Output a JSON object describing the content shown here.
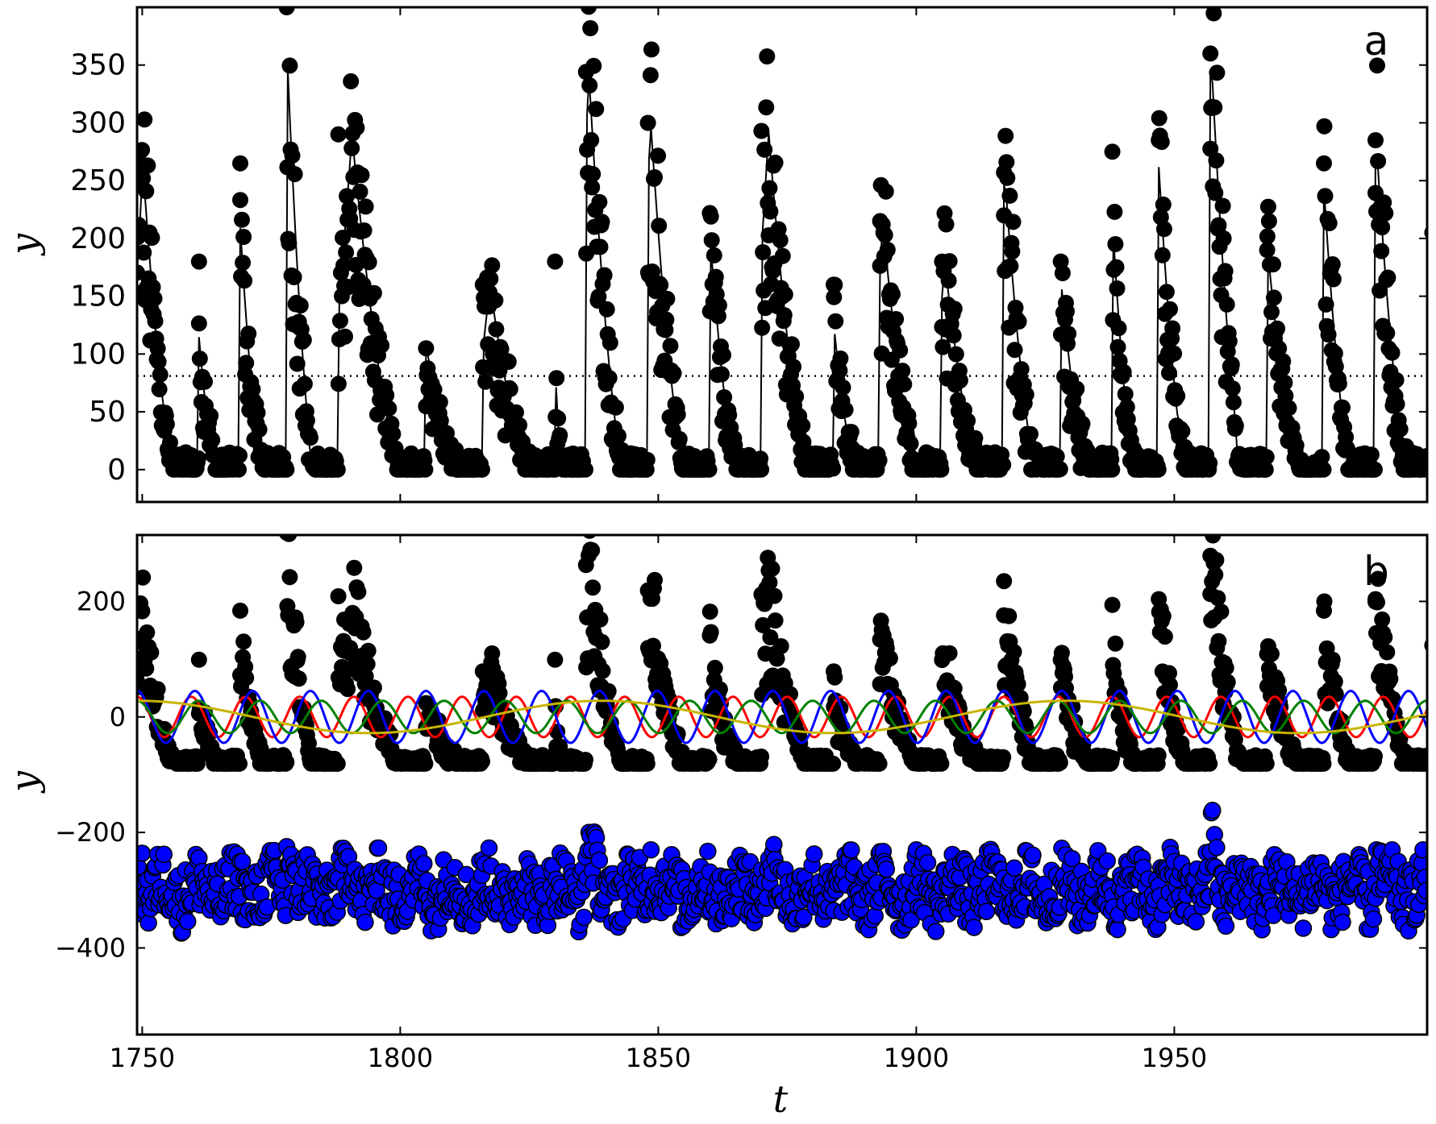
{
  "chart_data": [
    {
      "panel": "a",
      "type": "scatter",
      "xlabel": "",
      "ylabel": "y",
      "xlim": [
        1749,
        1999
      ],
      "ylim": [
        -28,
        400
      ],
      "yticks": [
        "0",
        "50",
        "100",
        "150",
        "200",
        "250",
        "300",
        "350"
      ],
      "ytick_values": [
        0,
        50,
        100,
        150,
        200,
        250,
        300,
        350
      ],
      "mean_level": 81,
      "series": [
        {
          "color": "#000000",
          "style": "markers",
          "cycles": [
            {
              "year": 1750,
              "y": 264
            },
            {
              "year": 1761,
              "y": 180
            },
            {
              "year": 1769,
              "y": 265
            },
            {
              "year": 1778,
              "y": 400
            },
            {
              "year": 1788,
              "y": 290
            },
            {
              "year": 1805,
              "y": 105
            },
            {
              "year": 1816,
              "y": 160
            },
            {
              "year": 1830,
              "y": 180
            },
            {
              "year": 1836,
              "y": 344
            },
            {
              "year": 1848,
              "y": 300
            },
            {
              "year": 1860,
              "y": 222
            },
            {
              "year": 1870,
              "y": 293
            },
            {
              "year": 1884,
              "y": 160
            },
            {
              "year": 1893,
              "y": 215
            },
            {
              "year": 1905,
              "y": 180
            },
            {
              "year": 1917,
              "y": 257
            },
            {
              "year": 1928,
              "y": 180
            },
            {
              "year": 1938,
              "y": 275
            },
            {
              "year": 1947,
              "y": 285
            },
            {
              "year": 1957,
              "y": 360
            },
            {
              "year": 1968,
              "y": 190
            },
            {
              "year": 1979,
              "y": 265
            },
            {
              "year": 1989,
              "y": 285
            },
            {
              "year": 2000,
              "y": 205
            }
          ]
        },
        {
          "color": "#000000",
          "style": "solid-line"
        },
        {
          "color": "#000000",
          "style": "dotted-line"
        }
      ]
    },
    {
      "panel": "b",
      "type": "scatter",
      "xlabel": "t",
      "ylabel": "y",
      "xlim": [
        1749,
        1999
      ],
      "ylim": [
        -550,
        315
      ],
      "xticks": [
        "1750",
        "1800",
        "1850",
        "1900",
        "1950"
      ],
      "xtick_values": [
        1750,
        1800,
        1850,
        1900,
        1950
      ],
      "yticks": [
        "200",
        "0",
        "−200",
        "−400"
      ],
      "ytick_values": [
        200,
        0,
        -200,
        -400
      ],
      "series": [
        {
          "color": "#000000",
          "style": "markers",
          "offset": -81
        },
        {
          "color": "#0000ff",
          "style": "markers",
          "center": -300
        },
        {
          "color": "#ff0000",
          "style": "line",
          "period": 10.5,
          "amplitude": 35
        },
        {
          "color": "#0000ff",
          "style": "line",
          "period": 11.2,
          "amplitude": 45
        },
        {
          "color": "#008000",
          "style": "line",
          "period": 11.9,
          "amplitude": 28
        },
        {
          "color": "#c8b400",
          "style": "line",
          "period": 90,
          "amplitude": 28
        }
      ]
    }
  ],
  "panels": {
    "a": {
      "letter": "a",
      "ylabel": "y"
    },
    "b": {
      "letter": "b",
      "ylabel": "y",
      "xlabel": "t"
    }
  }
}
